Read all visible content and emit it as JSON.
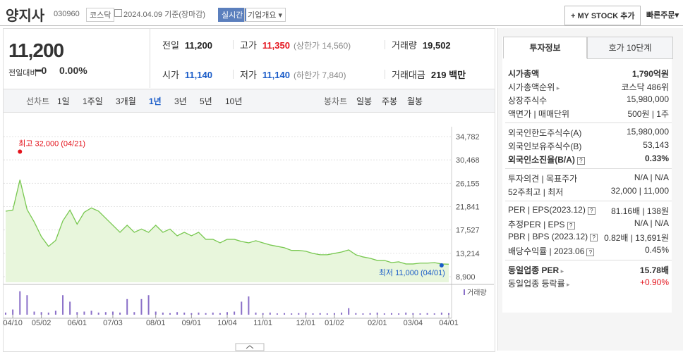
{
  "header": {
    "name": "양지사",
    "code": "030960",
    "market": "코스닥",
    "date": "2024.04.09 기준(장마감)",
    "realtime": "실시간",
    "overview": "기업개요",
    "mystock": "MY STOCK 추가",
    "order": "빠른주문"
  },
  "price": {
    "now": "11,200",
    "change_label": "전일대비",
    "change": "0",
    "rate": "0.00%"
  },
  "info": [
    {
      "label": "전일",
      "value": "11,200"
    },
    {
      "label": "고가",
      "value": "11,350",
      "note": "(상한가 14,560)",
      "color": "#e4141d"
    },
    {
      "label": "거래량",
      "value": "19,502"
    },
    {
      "label": "시가",
      "value": "11,140",
      "color": "#1a5cc8"
    },
    {
      "label": "저가",
      "value": "11,140",
      "note": "(하한가 7,840)",
      "color": "#1a5cc8"
    },
    {
      "label": "거래대금",
      "value": "219 백만"
    }
  ],
  "tabs": {
    "line": "선차트",
    "periods": [
      "1일",
      "1주일",
      "3개월",
      "1년",
      "3년",
      "5년",
      "10년"
    ],
    "selected": 3,
    "candle": "봉차트",
    "candles": [
      "일봉",
      "주봉",
      "월봉"
    ]
  },
  "chart_data": {
    "type": "line",
    "color": "#78c850",
    "fill": "#e8f6dc",
    "values": [
      21000,
      21200,
      26800,
      21300,
      19000,
      16300,
      14500,
      15600,
      19200,
      21200,
      18600,
      20800,
      21600,
      21000,
      19700,
      18400,
      17100,
      18400,
      17100,
      17700,
      17100,
      18400,
      17100,
      17700,
      16450,
      17100,
      16450,
      17100,
      15800,
      15800,
      15150,
      15800,
      15800,
      15400,
      15150,
      15550,
      15150,
      14760,
      14500,
      14250,
      13750,
      13750,
      13600,
      13200,
      12950,
      12950,
      13200,
      13450,
      13850,
      12950,
      12550,
      12300,
      11900,
      11900,
      11500,
      11650,
      11250,
      11250,
      11400,
      11400,
      11500,
      11250,
      11200
    ],
    "xlim": [
      0,
      62
    ],
    "xticks": [
      {
        "value": 1,
        "label": "04/10"
      },
      {
        "value": 5,
        "label": "05/02"
      },
      {
        "value": 10,
        "label": "06/01"
      },
      {
        "value": 15,
        "label": "07/03"
      },
      {
        "value": 21,
        "label": "08/01"
      },
      {
        "value": 26,
        "label": "09/01"
      },
      {
        "value": 31,
        "label": "10/04"
      },
      {
        "value": 36,
        "label": "11/01"
      },
      {
        "value": 42,
        "label": "12/01"
      },
      {
        "value": 46,
        "label": "01/02"
      },
      {
        "value": 52,
        "label": "02/01"
      },
      {
        "value": 57,
        "label": "03/04"
      },
      {
        "value": 62,
        "label": "04/01"
      }
    ],
    "ylim": [
      8900,
      34782
    ],
    "yticks": [
      {
        "value": 34782,
        "label": "34,782"
      },
      {
        "value": 30468,
        "label": "30,468"
      },
      {
        "value": 26155,
        "label": "26,155"
      },
      {
        "value": 21841,
        "label": "21,841"
      },
      {
        "value": 17527,
        "label": "17,527"
      },
      {
        "value": 13214,
        "label": "13,214"
      },
      {
        "value": 8900,
        "label": "8,900"
      }
    ],
    "grid": true,
    "high": {
      "text": "최고 32,000 (04/21)",
      "value": 32000,
      "color": "#e4141d"
    },
    "low": {
      "text": "최저 11,000 (04/01)",
      "value": 11000,
      "color": "#1a5cc8"
    },
    "volume": {
      "label": "거래량",
      "color": "#8a6fc8",
      "ylim": [
        0,
        100
      ],
      "values": [
        8,
        20,
        90,
        75,
        12,
        10,
        8,
        15,
        75,
        50,
        10,
        12,
        15,
        8,
        10,
        12,
        8,
        60,
        10,
        60,
        75,
        12,
        8,
        6,
        10,
        8,
        6,
        8,
        6,
        8,
        6,
        10,
        12,
        50,
        70,
        8,
        6,
        8,
        5,
        6,
        5,
        6,
        8,
        5,
        6,
        5,
        6,
        8,
        25,
        6,
        5,
        6,
        8,
        5,
        6,
        5,
        8,
        6,
        5,
        6,
        5,
        8,
        6
      ]
    }
  },
  "invest": {
    "tabs": [
      "투자정보",
      "호가 10단계"
    ],
    "groups": [
      [
        {
          "label": "시가총액",
          "value": "1,790억원",
          "bold": true
        },
        {
          "label": "시가총액순위",
          "value": "코스닥 486위",
          "link": true
        },
        {
          "label": "상장주식수",
          "value": "15,980,000"
        },
        {
          "label": "액면가 | 매매단위",
          "value": "500원 | 1주"
        }
      ],
      [
        {
          "label": "외국인한도주식수(A)",
          "value": "15,980,000"
        },
        {
          "label": "외국인보유주식수(B)",
          "value": "53,143"
        },
        {
          "label": "외국인소진율(B/A)",
          "value": "0.33%",
          "bold": true,
          "help": true
        }
      ],
      [
        {
          "label": "투자의견 | 목표주가",
          "value": "N/A | N/A"
        },
        {
          "label": "52주최고 | 최저",
          "value": "32,000 | 11,000"
        }
      ],
      [
        {
          "label": "PER | EPS(2023.12)",
          "value": "81.16배 | 138원",
          "help": true
        },
        {
          "label": "추정PER | EPS",
          "value": "N/A | N/A",
          "help": true
        },
        {
          "label": "PBR | BPS (2023.12)",
          "value": "0.82배 | 13,691원",
          "help": true
        },
        {
          "label": "배당수익률 | 2023.06",
          "value": "0.45%",
          "help": true
        }
      ],
      [
        {
          "label": "동일업종 PER",
          "value": "15.78배",
          "bold": true,
          "link": true
        },
        {
          "label": "동일업종 등락률",
          "value": "+0.90%",
          "link": true,
          "color": "#e4141d"
        }
      ]
    ]
  }
}
